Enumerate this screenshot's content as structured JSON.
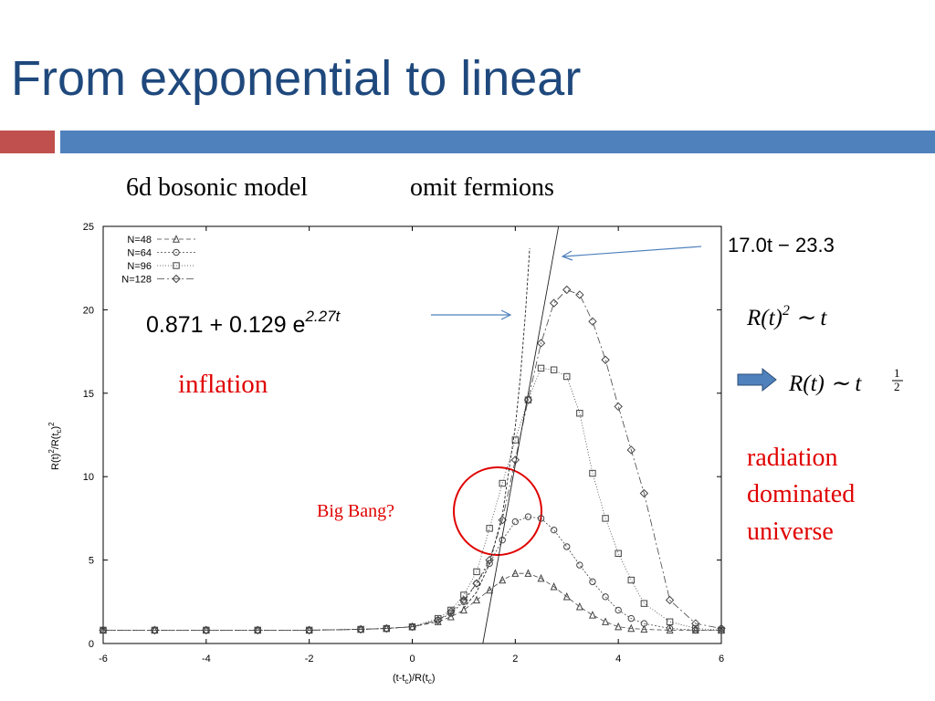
{
  "title": "From exponential to linear",
  "subtitle": [
    "6d bosonic model",
    "omit fermions"
  ],
  "chart_data": {
    "type": "line",
    "xlabel": [
      "(t-t",
      "c",
      ")/R(t",
      "c",
      ")"
    ],
    "ylabel": [
      "R(t)",
      "2",
      "/R(t",
      "c",
      ")",
      "2"
    ],
    "x": [
      -6,
      -5,
      -4,
      -3,
      -2,
      -1,
      -0.5,
      0,
      0.5,
      0.75,
      1,
      1.25,
      1.5,
      1.75,
      2,
      2.25,
      2.5,
      2.75,
      3,
      3.25,
      3.5,
      3.75,
      4,
      4.25,
      4.5,
      5,
      5.5,
      6
    ],
    "series": [
      {
        "name": "N=48",
        "color": "#444444",
        "marker": "triangle",
        "dash": "5 3",
        "values": [
          0.8,
          0.8,
          0.8,
          0.8,
          0.8,
          0.85,
          0.9,
          1.0,
          1.3,
          1.6,
          2.0,
          2.6,
          3.2,
          3.8,
          4.2,
          4.2,
          3.9,
          3.4,
          2.8,
          2.2,
          1.7,
          1.3,
          1.0,
          0.9,
          0.85,
          0.8,
          0.8,
          0.8
        ]
      },
      {
        "name": "N=64",
        "color": "#444444",
        "marker": "circle",
        "dash": "2 2",
        "values": [
          0.8,
          0.8,
          0.8,
          0.8,
          0.8,
          0.85,
          0.9,
          1.0,
          1.4,
          1.8,
          2.5,
          3.6,
          4.8,
          6.2,
          7.3,
          7.6,
          7.5,
          6.8,
          5.8,
          4.7,
          3.7,
          2.8,
          2.0,
          1.5,
          1.2,
          0.9,
          0.8,
          0.8
        ]
      },
      {
        "name": "N=96",
        "color": "#444444",
        "marker": "square",
        "dash": "1 2",
        "values": [
          0.8,
          0.8,
          0.8,
          0.8,
          0.8,
          0.85,
          0.9,
          1.0,
          1.5,
          2.0,
          2.9,
          4.3,
          6.9,
          9.6,
          12.2,
          14.6,
          16.5,
          16.4,
          16.0,
          13.8,
          10.2,
          7.5,
          5.4,
          3.8,
          2.4,
          1.3,
          0.9,
          0.8
        ]
      },
      {
        "name": "N=128",
        "color": "#444444",
        "marker": "diamond",
        "dash": "8 3 2 3",
        "values": [
          0.8,
          0.8,
          0.8,
          0.8,
          0.8,
          0.85,
          0.9,
          1.0,
          1.4,
          1.9,
          2.6,
          3.6,
          5.0,
          7.4,
          11.0,
          14.6,
          18.0,
          20.4,
          21.2,
          20.9,
          19.3,
          17.0,
          14.2,
          11.6,
          9.0,
          2.6,
          1.2,
          0.9
        ]
      }
    ],
    "fits": [
      {
        "label": "0.871 + 0.129 e",
        "exponent": "2.27t",
        "dash": "3 2",
        "x": [
          1.0,
          1.25,
          1.5,
          1.75,
          2.0,
          2.1,
          2.2,
          2.28
        ],
        "values": [
          2.12,
          3.08,
          4.76,
          7.71,
          12.96,
          16.04,
          19.9,
          23.69
        ]
      },
      {
        "label": "17.0t − 23.3",
        "dash": "none",
        "x": [
          1.37,
          2.84
        ],
        "values": [
          0,
          25
        ]
      }
    ],
    "xlim": [
      -6,
      6
    ],
    "xticks": [
      -6,
      -4,
      -2,
      0,
      2,
      4,
      6
    ],
    "ylim": [
      0,
      25
    ],
    "yticks": [
      0,
      5,
      10,
      15,
      20,
      25
    ],
    "legend": "upper left"
  },
  "annotations": {
    "inflation": "inflation",
    "big_bang": "Big Bang?",
    "radiation": [
      "radiation",
      "dominated",
      "universe"
    ],
    "scaling_square": [
      "R(t)",
      "2",
      " ∼ t"
    ],
    "scaling_root": [
      "R(t) ∼ t",
      "1",
      "2"
    ]
  }
}
